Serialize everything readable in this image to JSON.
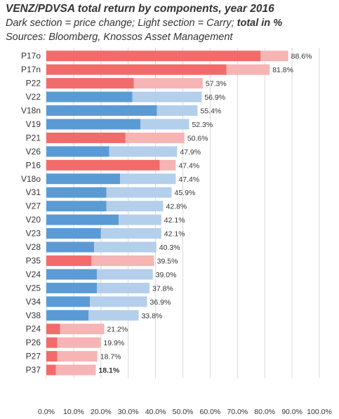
{
  "header": {
    "title": "VENZ/PDVSA total return by components, year 2016",
    "subtitle_pre": "Dark section = price change; Light section = Carry; ",
    "subtitle_bold": "total in %",
    "source": "Sources: Bloomberg, Knossos Asset Management"
  },
  "colors": {
    "P_dark": "#f26b6b",
    "P_light": "#f7b4b4",
    "V_dark": "#5b9bd5",
    "V_light": "#b4cfeb",
    "grid": "#d9d9d9"
  },
  "chart_data": {
    "type": "bar",
    "orientation": "horizontal",
    "stacked": true,
    "title": "VENZ/PDVSA total return by components, year 2016",
    "xlim": [
      0,
      100
    ],
    "x_tick_labels": [
      "0.0%",
      "10.0%",
      "20.0%",
      "30.0%",
      "40.0%",
      "50.0%",
      "60.0%",
      "70.0%",
      "80.0%",
      "90.0%",
      "100.0%"
    ],
    "grid": true,
    "categories": [
      "P17o",
      "P17n",
      "P22",
      "V22",
      "V18n",
      "V19",
      "P21",
      "V26",
      "P16",
      "V18o",
      "V31",
      "V27",
      "V20",
      "V23",
      "V28",
      "P35",
      "V24",
      "V25",
      "V34",
      "V38",
      "P24",
      "P26",
      "P27",
      "P37"
    ],
    "series": [
      {
        "name": "Price change",
        "values": [
          78.5,
          66.0,
          32.0,
          31.5,
          40.5,
          34.5,
          29.0,
          23.0,
          41.5,
          27.0,
          22.0,
          22.0,
          26.5,
          20.0,
          17.5,
          16.5,
          18.5,
          18.5,
          16.0,
          15.5,
          5.0,
          4.0,
          4.0,
          3.5
        ]
      },
      {
        "name": "Carry",
        "values": [
          10.1,
          15.8,
          25.3,
          25.4,
          14.9,
          17.8,
          21.6,
          24.9,
          5.9,
          20.4,
          23.9,
          20.8,
          15.6,
          22.1,
          22.8,
          23.0,
          20.5,
          19.3,
          20.9,
          18.3,
          16.2,
          15.9,
          14.7,
          14.6
        ]
      }
    ],
    "totals": [
      88.6,
      81.8,
      57.3,
      56.9,
      55.4,
      52.3,
      50.6,
      47.9,
      47.4,
      47.4,
      45.9,
      42.8,
      42.1,
      42.1,
      40.3,
      39.5,
      39.0,
      37.8,
      36.9,
      33.8,
      21.2,
      19.9,
      18.7,
      18.1
    ],
    "total_labels": [
      "88.6%",
      "81.8%",
      "57.3%",
      "56.9%",
      "55.4%",
      "52.3%",
      "50.6%",
      "47.9%",
      "47.4%",
      "47.4%",
      "45.9%",
      "42.8%",
      "42.1%",
      "42.1%",
      "40.3%",
      "39.5%",
      "39.0%",
      "37.8%",
      "36.9%",
      "33.8%",
      "21.2%",
      "19.9%",
      "18.7%",
      "18.1%"
    ],
    "bold_total_index": 23
  }
}
